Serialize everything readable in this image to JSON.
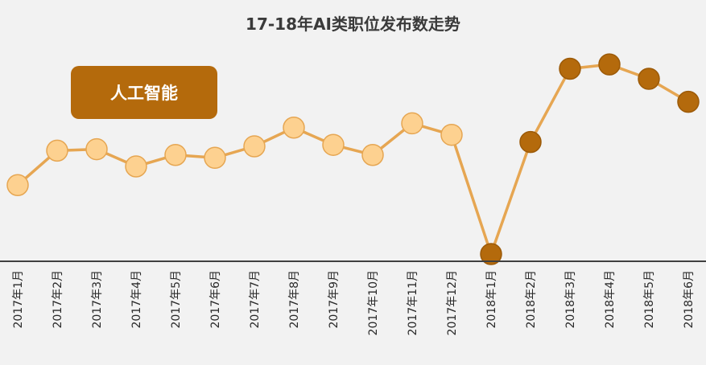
{
  "chart_data": {
    "type": "line",
    "title": "17-18年AI类职位发布数走势",
    "badge_label": "人工智能",
    "xlabel": "",
    "ylabel": "",
    "grid": false,
    "y_axis_visible": false,
    "categories": [
      "2017年1月",
      "2017年2月",
      "2017年3月",
      "2017年4月",
      "2017年5月",
      "2017年6月",
      "2017年7月",
      "2017年8月",
      "2017年9月",
      "2017年10月",
      "2017年11月",
      "2017年12月",
      "2018年1月",
      "2018年2月",
      "2018年3月",
      "2018年4月",
      "2018年5月",
      "2018年6月"
    ],
    "series": [
      {
        "values": [
          18,
          42,
          43,
          31,
          39,
          37,
          45,
          58,
          46,
          39,
          61,
          53,
          -30,
          48,
          99,
          102,
          92,
          76
        ]
      }
    ],
    "ylim": [
      -30,
      120
    ],
    "colors": {
      "line": "#e6a652",
      "marker_2017": "#fdd190",
      "marker_2017_edge": "#e6a652",
      "marker_2018": "#b46a0c",
      "marker_2018_edge": "#9c5a08",
      "axis": "#404040"
    }
  }
}
